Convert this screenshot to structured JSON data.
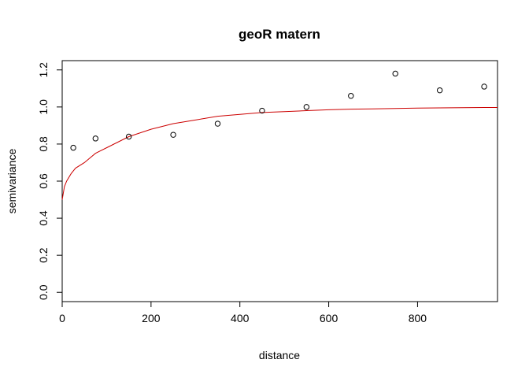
{
  "chart_data": {
    "type": "scatter",
    "title": "geoR matern",
    "xlabel": "distance",
    "ylabel": "semivariance",
    "xlim": [
      0,
      980
    ],
    "ylim": [
      0.0,
      1.2
    ],
    "x_ticks": [
      0,
      200,
      400,
      600,
      800
    ],
    "x_tick_labels": [
      "0",
      "200",
      "400",
      "600",
      "800"
    ],
    "y_ticks": [
      0.0,
      0.2,
      0.4,
      0.6,
      0.8,
      1.0,
      1.2
    ],
    "y_tick_labels": [
      "0.0",
      "0.2",
      "0.4",
      "0.6",
      "0.8",
      "1.0",
      "1.2"
    ],
    "grid": false,
    "series": [
      {
        "type": "scatter",
        "marker": "open-circle",
        "color": "#000000",
        "x": [
          25,
          75,
          150,
          250,
          350,
          450,
          550,
          650,
          750,
          850,
          950
        ],
        "y": [
          0.78,
          0.83,
          0.84,
          0.85,
          0.91,
          0.98,
          1.0,
          1.06,
          1.18,
          1.09,
          1.11
        ]
      },
      {
        "type": "line",
        "color": "#cc0000",
        "model": "matern",
        "nugget": 0.5,
        "partial_sill": 0.5,
        "x": [
          0,
          5,
          10,
          20,
          30,
          50,
          75,
          100,
          150,
          200,
          250,
          300,
          350,
          400,
          450,
          500,
          550,
          600,
          650,
          700,
          750,
          800,
          850,
          900,
          950,
          980
        ],
        "y": [
          0.5,
          0.57,
          0.6,
          0.64,
          0.67,
          0.7,
          0.75,
          0.78,
          0.84,
          0.88,
          0.91,
          0.93,
          0.95,
          0.96,
          0.97,
          0.975,
          0.98,
          0.985,
          0.988,
          0.99,
          0.992,
          0.994,
          0.995,
          0.996,
          0.997,
          0.997
        ]
      }
    ]
  }
}
